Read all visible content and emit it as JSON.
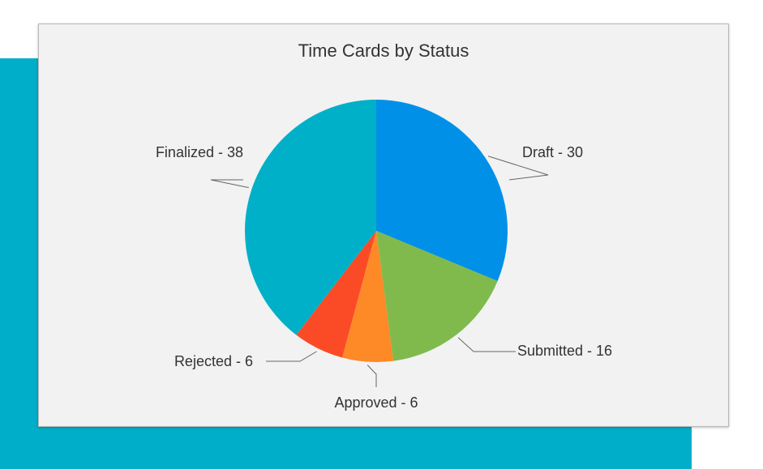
{
  "chart_data": {
    "type": "pie",
    "title": "Time Cards by Status",
    "slices": [
      {
        "label": "Draft",
        "value": 30,
        "color": "#0090e8"
      },
      {
        "label": "Submitted",
        "value": 16,
        "color": "#80ba4c"
      },
      {
        "label": "Approved",
        "value": 6,
        "color": "#fd8a27"
      },
      {
        "label": "Rejected",
        "value": 6,
        "color": "#fb4b26"
      },
      {
        "label": "Finalized",
        "value": 38,
        "color": "#00b0c9"
      }
    ],
    "label_separator": " - ",
    "start_angle": "12 o'clock",
    "direction": "clockwise",
    "legend": "none"
  },
  "colors": {
    "backdrop": "#00aec9",
    "card": "#f2f2f2"
  }
}
